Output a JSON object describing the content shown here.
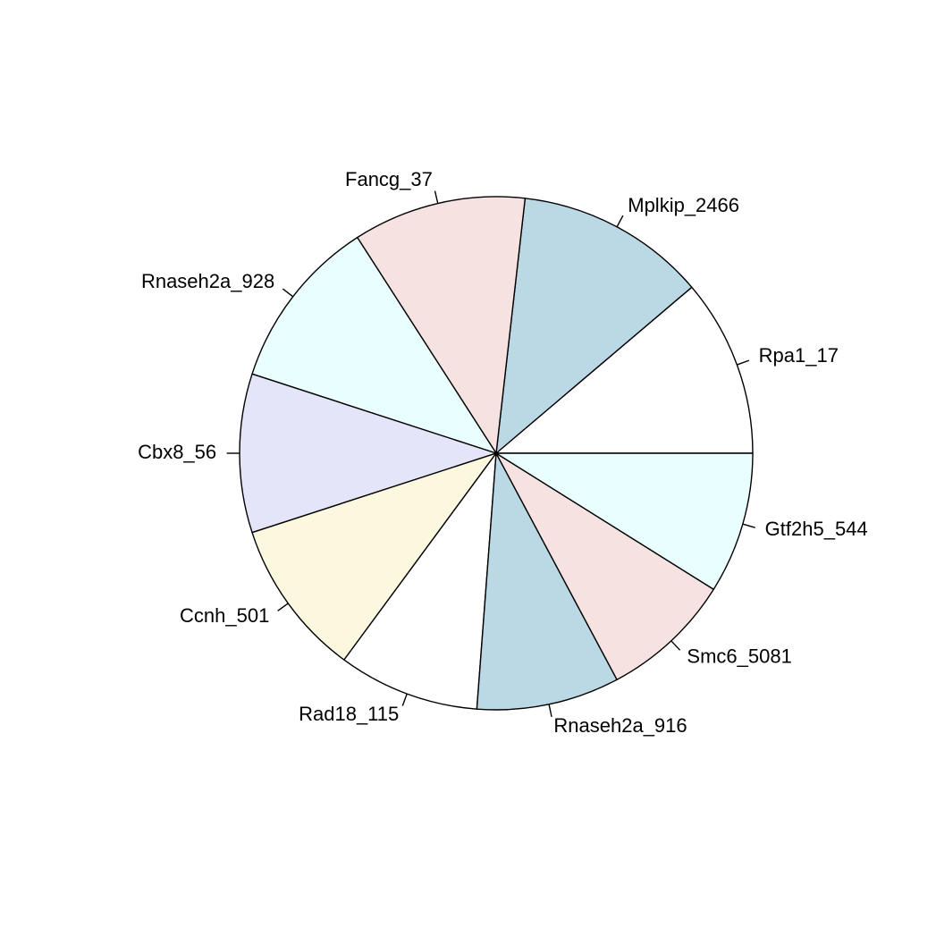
{
  "chart_data": {
    "type": "pie",
    "title": "",
    "direction": "counterclockwise",
    "start_angle_deg": 0,
    "slices": [
      {
        "label": "Rpa1_17",
        "value": 0.112,
        "color": "#FFFFFF"
      },
      {
        "label": "Mplkip_2466",
        "value": 0.12,
        "color": "#BBD8E5"
      },
      {
        "label": "Fancg_37",
        "value": 0.109,
        "color": "#F6E2E0"
      },
      {
        "label": "Rnaseh2a_928",
        "value": 0.109,
        "color": "#E8FEFF"
      },
      {
        "label": "Cbx8_56",
        "value": 0.1,
        "color": "#E5E5F9"
      },
      {
        "label": "Ccnh_501",
        "value": 0.099,
        "color": "#FCF8DF"
      },
      {
        "label": "Rad18_115",
        "value": 0.089,
        "color": "#FFFFFF"
      },
      {
        "label": "Rnaseh2a_916",
        "value": 0.09,
        "color": "#BBD8E5"
      },
      {
        "label": "Smc6_5081",
        "value": 0.083,
        "color": "#F6E2E0"
      },
      {
        "label": "Gtf2h5_544",
        "value": 0.089,
        "color": "#E8FEFF"
      }
    ]
  }
}
